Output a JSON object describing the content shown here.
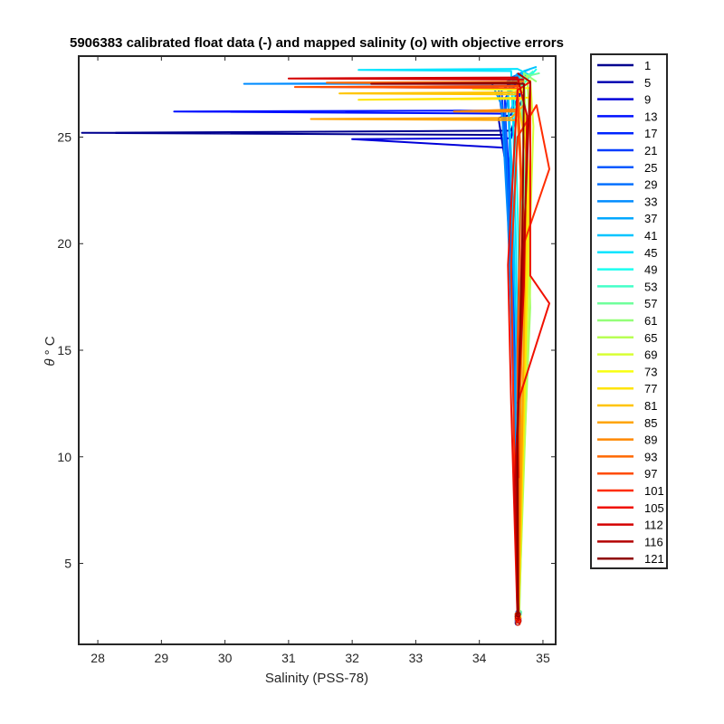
{
  "chart_data": {
    "type": "line",
    "title": "5906383 calibrated float data (-) and mapped salinity (o) with objective errors",
    "xlabel": "Salinity (PSS-78)",
    "ylabel_symbol": "θ",
    "ylabel_unit": "° C",
    "xlim": [
      27.7,
      35.2
    ],
    "ylim": [
      1.2,
      28.8
    ],
    "xticks": [
      28,
      29,
      30,
      31,
      32,
      33,
      34,
      35
    ],
    "yticks": [
      5,
      10,
      15,
      20,
      25
    ],
    "grid": false,
    "legend_position": "outside-right",
    "legend": [
      "1",
      "5",
      "9",
      "13",
      "17",
      "21",
      "25",
      "29",
      "33",
      "37",
      "41",
      "45",
      "49",
      "53",
      "57",
      "61",
      "65",
      "69",
      "73",
      "77",
      "81",
      "85",
      "89",
      "93",
      "97",
      "101",
      "105",
      "112",
      "116",
      "121"
    ],
    "legend_colors": [
      "#00008f",
      "#0000b3",
      "#0000d9",
      "#0010ff",
      "#0024ff",
      "#003cff",
      "#0058ff",
      "#0070ff",
      "#008cff",
      "#00a8ff",
      "#00c4ff",
      "#00e4ff",
      "#1cfff0",
      "#44ffc8",
      "#70ff9c",
      "#94ff78",
      "#b8ff54",
      "#d8ff34",
      "#f8ff10",
      "#ffe400",
      "#ffc400",
      "#ffa400",
      "#ff8800",
      "#ff6800",
      "#ff4c00",
      "#ff2c00",
      "#f01000",
      "#d40000",
      "#b40000",
      "#8f0000"
    ],
    "series": [
      {
        "color": "#00008f",
        "points": [
          [
            34.6,
            2.2
          ],
          [
            34.62,
            5
          ],
          [
            34.55,
            10
          ],
          [
            34.6,
            15
          ],
          [
            34.5,
            20
          ],
          [
            34.45,
            24
          ],
          [
            34.4,
            25.1
          ],
          [
            27.75,
            25.2
          ],
          [
            34.5,
            25.3
          ],
          [
            34.6,
            26.2
          ],
          [
            34.7,
            27
          ]
        ]
      },
      {
        "color": "#0000b3",
        "points": [
          [
            34.6,
            2.3
          ],
          [
            34.58,
            6
          ],
          [
            34.62,
            12
          ],
          [
            34.5,
            19
          ],
          [
            34.45,
            23
          ],
          [
            34.3,
            25.9
          ],
          [
            34.5,
            26.05
          ],
          [
            34.65,
            27.2
          ]
        ]
      },
      {
        "color": "#0000d9",
        "points": [
          [
            34.6,
            2.5
          ],
          [
            34.6,
            7
          ],
          [
            34.55,
            14
          ],
          [
            34.48,
            21
          ],
          [
            34.4,
            24.5
          ],
          [
            32,
            24.9
          ],
          [
            34.5,
            24.95
          ],
          [
            34.6,
            26.5
          ],
          [
            34.7,
            27.8
          ]
        ]
      },
      {
        "color": "#0010ff",
        "points": [
          [
            34.62,
            2.4
          ],
          [
            34.6,
            8
          ],
          [
            34.58,
            15
          ],
          [
            34.5,
            22
          ],
          [
            34.4,
            26.1
          ],
          [
            29.2,
            26.2
          ],
          [
            34.5,
            26.25
          ],
          [
            34.6,
            27.3
          ]
        ]
      },
      {
        "color": "#0024ff",
        "points": [
          [
            34.6,
            2.6
          ],
          [
            34.58,
            9
          ],
          [
            34.55,
            16
          ],
          [
            34.45,
            23
          ],
          [
            34.4,
            26.8
          ],
          [
            34.6,
            27.6
          ],
          [
            34.75,
            28
          ]
        ]
      },
      {
        "color": "#003cff",
        "points": [
          [
            34.62,
            2.3
          ],
          [
            34.6,
            10
          ],
          [
            34.5,
            18
          ],
          [
            34.42,
            24
          ],
          [
            34.35,
            27.2
          ],
          [
            34.6,
            27.8
          ]
        ]
      },
      {
        "color": "#0058ff",
        "points": [
          [
            34.6,
            2.5
          ],
          [
            34.55,
            11
          ],
          [
            34.48,
            19
          ],
          [
            34.4,
            25
          ],
          [
            34.3,
            27.3
          ],
          [
            31.5,
            27.35
          ],
          [
            34.5,
            27.4
          ],
          [
            34.7,
            27.9
          ]
        ]
      },
      {
        "color": "#0070ff",
        "points": [
          [
            34.61,
            2.7
          ],
          [
            34.57,
            12
          ],
          [
            34.5,
            20
          ],
          [
            34.4,
            26
          ],
          [
            34.5,
            27.8
          ],
          [
            34.8,
            28.2
          ]
        ]
      },
      {
        "color": "#008cff",
        "points": [
          [
            34.6,
            2.4
          ],
          [
            34.55,
            13
          ],
          [
            34.45,
            21
          ],
          [
            34.35,
            26.5
          ],
          [
            34.2,
            27.5
          ],
          [
            30.3,
            27.5
          ],
          [
            34.4,
            27.55
          ],
          [
            34.7,
            28
          ]
        ]
      },
      {
        "color": "#00a8ff",
        "points": [
          [
            34.62,
            2.6
          ],
          [
            34.6,
            14
          ],
          [
            34.5,
            22
          ],
          [
            34.45,
            27
          ],
          [
            34.6,
            28
          ]
        ]
      },
      {
        "color": "#00c4ff",
        "points": [
          [
            34.6,
            2.5
          ],
          [
            34.58,
            15
          ],
          [
            34.52,
            23
          ],
          [
            34.45,
            27.2
          ],
          [
            34.7,
            28.1
          ],
          [
            34.9,
            28.3
          ]
        ]
      },
      {
        "color": "#00e4ff",
        "points": [
          [
            34.61,
            2.3
          ],
          [
            34.6,
            16
          ],
          [
            34.55,
            24
          ],
          [
            34.5,
            28.1
          ],
          [
            32.1,
            28.15
          ],
          [
            34.6,
            28.2
          ],
          [
            34.8,
            27.9
          ]
        ]
      },
      {
        "color": "#1cfff0",
        "points": [
          [
            34.62,
            2.6
          ],
          [
            34.65,
            14
          ],
          [
            34.6,
            22
          ],
          [
            34.55,
            27
          ],
          [
            34.9,
            28.2
          ]
        ]
      },
      {
        "color": "#44ffc8",
        "points": [
          [
            34.6,
            2.4
          ],
          [
            34.7,
            15
          ],
          [
            34.65,
            23
          ],
          [
            34.6,
            27.5
          ],
          [
            34.85,
            28.1
          ]
        ]
      },
      {
        "color": "#70ff9c",
        "points": [
          [
            34.63,
            2.7
          ],
          [
            34.75,
            16
          ],
          [
            34.7,
            24
          ],
          [
            34.65,
            27.8
          ],
          [
            34.95,
            28
          ]
        ]
      },
      {
        "color": "#94ff78",
        "points": [
          [
            34.6,
            2.5
          ],
          [
            34.8,
            17
          ],
          [
            34.75,
            24.5
          ],
          [
            34.7,
            28
          ],
          [
            34.9,
            27.6
          ]
        ]
      },
      {
        "color": "#b8ff54",
        "points": [
          [
            34.62,
            2.3
          ],
          [
            34.8,
            18
          ],
          [
            34.8,
            25
          ],
          [
            34.75,
            27.9
          ]
        ]
      },
      {
        "color": "#d8ff34",
        "points": [
          [
            34.61,
            2.6
          ],
          [
            34.78,
            19
          ],
          [
            34.85,
            25.5
          ],
          [
            34.8,
            27.7
          ]
        ]
      },
      {
        "color": "#f8ff10",
        "points": [
          [
            34.6,
            2.4
          ],
          [
            34.7,
            13
          ],
          [
            34.75,
            22
          ],
          [
            34.7,
            27.2
          ],
          [
            33.9,
            27.25
          ],
          [
            34.8,
            27.3
          ]
        ]
      },
      {
        "color": "#ffe400",
        "points": [
          [
            34.62,
            2.5
          ],
          [
            34.72,
            14
          ],
          [
            34.78,
            23
          ],
          [
            34.7,
            26.8
          ],
          [
            32.1,
            26.75
          ],
          [
            34.8,
            26.85
          ]
        ]
      },
      {
        "color": "#ffc400",
        "points": [
          [
            34.6,
            2.6
          ],
          [
            34.7,
            15
          ],
          [
            34.75,
            24
          ],
          [
            34.6,
            27
          ],
          [
            31.8,
            27.05
          ],
          [
            34.7,
            27.1
          ]
        ]
      },
      {
        "color": "#ffa400",
        "points": [
          [
            34.61,
            2.3
          ],
          [
            34.68,
            12
          ],
          [
            34.72,
            20
          ],
          [
            34.6,
            25.8
          ],
          [
            31.35,
            25.85
          ],
          [
            34.5,
            25.9
          ],
          [
            34.7,
            26.5
          ]
        ]
      },
      {
        "color": "#ff8800",
        "points": [
          [
            34.6,
            2.5
          ],
          [
            34.65,
            13
          ],
          [
            34.7,
            21
          ],
          [
            34.6,
            26.2
          ],
          [
            33.6,
            26.2
          ],
          [
            34.6,
            26.3
          ]
        ]
      },
      {
        "color": "#ff6800",
        "points": [
          [
            34.62,
            2.4
          ],
          [
            34.62,
            14
          ],
          [
            34.68,
            22
          ],
          [
            34.6,
            27.5
          ],
          [
            31.6,
            27.55
          ],
          [
            34.7,
            27.6
          ]
        ]
      },
      {
        "color": "#ff4c00",
        "points": [
          [
            34.6,
            2.6
          ],
          [
            34.6,
            15
          ],
          [
            34.65,
            23
          ],
          [
            34.6,
            27.3
          ],
          [
            31.1,
            27.35
          ],
          [
            34.65,
            27.4
          ]
        ]
      },
      {
        "color": "#ff2c00",
        "points": [
          [
            34.61,
            2.2
          ],
          [
            34.55,
            10
          ],
          [
            34.5,
            19
          ],
          [
            34.6,
            25
          ],
          [
            34.9,
            26.5
          ],
          [
            35.1,
            23.5
          ],
          [
            34.7,
            20
          ],
          [
            34.6,
            12
          ],
          [
            34.62,
            9
          ]
        ]
      },
      {
        "color": "#f01000",
        "points": [
          [
            34.6,
            2.4
          ],
          [
            34.5,
            12.5
          ],
          [
            34.45,
            19
          ],
          [
            34.6,
            27.2
          ],
          [
            34.8,
            27.6
          ],
          [
            34.8,
            18.5
          ],
          [
            35.1,
            17.2
          ],
          [
            34.6,
            12.5
          ]
        ]
      },
      {
        "color": "#d40000",
        "points": [
          [
            34.62,
            2.3
          ],
          [
            34.55,
            8.5
          ],
          [
            34.7,
            18
          ],
          [
            34.75,
            26
          ],
          [
            34.6,
            27.8
          ],
          [
            31,
            27.75
          ],
          [
            34.7,
            27.7
          ]
        ]
      },
      {
        "color": "#b40000",
        "points": [
          [
            34.6,
            2.5
          ],
          [
            34.58,
            9
          ],
          [
            34.7,
            20
          ],
          [
            34.8,
            27.6
          ],
          [
            34.6,
            28
          ]
        ]
      },
      {
        "color": "#8f0000",
        "points": [
          [
            34.61,
            2.6
          ],
          [
            34.6,
            11
          ],
          [
            34.68,
            21
          ],
          [
            34.7,
            27.5
          ],
          [
            32.3,
            27.5
          ],
          [
            34.6,
            27.55
          ]
        ]
      }
    ]
  }
}
